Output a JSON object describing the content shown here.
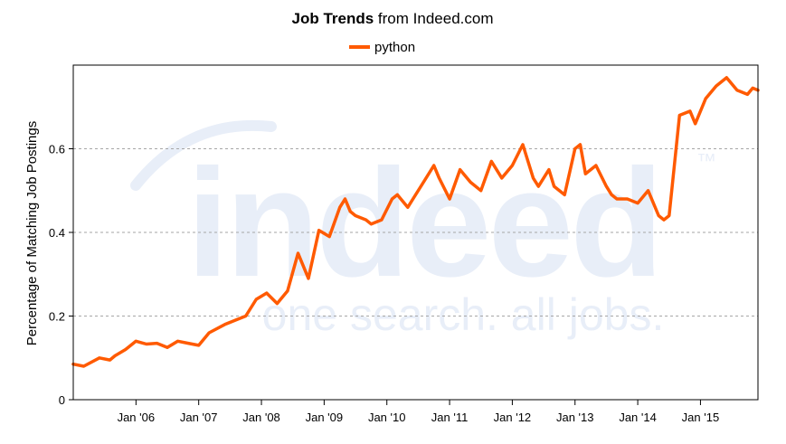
{
  "header": {
    "title_bold": "Job Trends",
    "title_rest": " from Indeed.com"
  },
  "watermark": {
    "logo_text": "indeed",
    "tm": "™",
    "tagline": "one search. all jobs."
  },
  "colors": {
    "series": "#ff5a00",
    "grid": "#a6a6a6",
    "axis": "#000000",
    "watermark": "#e8eef8"
  },
  "chart_data": {
    "type": "line",
    "title": "Job Trends from Indeed.com",
    "xlabel": "",
    "ylabel": "Percentage of Matching Job Postings",
    "ylim": [
      0,
      0.8
    ],
    "yticks": [
      0,
      0.2,
      0.4,
      0.6
    ],
    "ytick_labels": [
      "0",
      "0.2",
      "0.4",
      "0.6"
    ],
    "xlim": [
      "2005-01",
      "2015-12"
    ],
    "xticks": [
      "2006-01",
      "2007-01",
      "2008-01",
      "2009-01",
      "2010-01",
      "2011-01",
      "2012-01",
      "2013-01",
      "2014-01",
      "2015-01"
    ],
    "xtick_labels": [
      "Jan '06",
      "Jan '07",
      "Jan '08",
      "Jan '09",
      "Jan '10",
      "Jan '11",
      "Jan '12",
      "Jan '13",
      "Jan '14",
      "Jan '15"
    ],
    "grid": true,
    "legend": "top-center",
    "series": [
      {
        "name": "python",
        "x": [
          "2005-01",
          "2005-03",
          "2005-06",
          "2005-08",
          "2005-09",
          "2005-11",
          "2006-01",
          "2006-03",
          "2006-05",
          "2006-07",
          "2006-09",
          "2006-11",
          "2007-01",
          "2007-03",
          "2007-06",
          "2007-08",
          "2007-10",
          "2007-12",
          "2008-02",
          "2008-04",
          "2008-06",
          "2008-08",
          "2008-10",
          "2008-12",
          "2009-02",
          "2009-04",
          "2009-05",
          "2009-06",
          "2009-07",
          "2009-09",
          "2009-10",
          "2009-12",
          "2010-02",
          "2010-03",
          "2010-05",
          "2010-06",
          "2010-08",
          "2010-10",
          "2010-11",
          "2011-01",
          "2011-03",
          "2011-05",
          "2011-07",
          "2011-09",
          "2011-11",
          "2012-01",
          "2012-03",
          "2012-05",
          "2012-06",
          "2012-08",
          "2012-09",
          "2012-11",
          "2013-01",
          "2013-02",
          "2013-03",
          "2013-05",
          "2013-07",
          "2013-08",
          "2013-09",
          "2013-11",
          "2014-01",
          "2014-03",
          "2014-05",
          "2014-06",
          "2014-07",
          "2014-09",
          "2014-11",
          "2014-12",
          "2015-02",
          "2015-04",
          "2015-06",
          "2015-08",
          "2015-10",
          "2015-11",
          "2015-12"
        ],
        "values": [
          0.085,
          0.08,
          0.1,
          0.095,
          0.105,
          0.12,
          0.14,
          0.133,
          0.135,
          0.125,
          0.14,
          0.135,
          0.13,
          0.16,
          0.18,
          0.19,
          0.2,
          0.24,
          0.255,
          0.23,
          0.26,
          0.35,
          0.29,
          0.405,
          0.39,
          0.46,
          0.48,
          0.45,
          0.44,
          0.43,
          0.42,
          0.43,
          0.48,
          0.49,
          0.46,
          0.48,
          0.52,
          0.56,
          0.53,
          0.48,
          0.55,
          0.52,
          0.5,
          0.57,
          0.53,
          0.56,
          0.61,
          0.53,
          0.51,
          0.55,
          0.51,
          0.49,
          0.6,
          0.61,
          0.54,
          0.56,
          0.51,
          0.49,
          0.48,
          0.48,
          0.47,
          0.5,
          0.44,
          0.43,
          0.44,
          0.68,
          0.69,
          0.66,
          0.72,
          0.75,
          0.77,
          0.74,
          0.73,
          0.745,
          0.74
        ]
      }
    ]
  }
}
